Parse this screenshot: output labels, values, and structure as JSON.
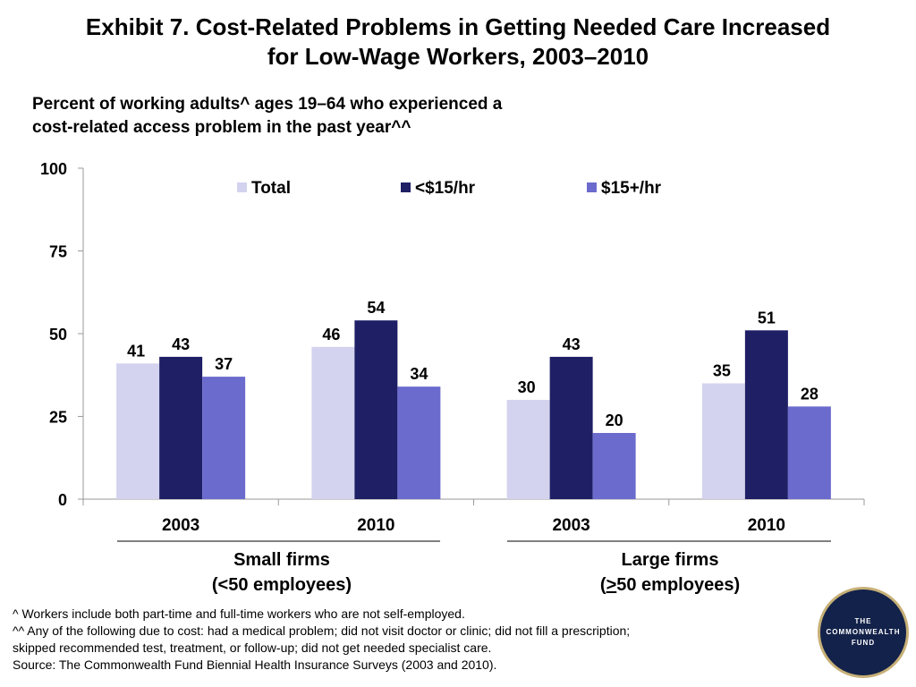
{
  "title_line1": "Exhibit 7. Cost-Related Problems in Getting Needed Care Increased",
  "title_line2": "for Low-Wage Workers, 2003–2010",
  "subtitle_line1": "Percent of working adults^ ages 19–64 who experienced a",
  "subtitle_line2": "cost-related access problem in the past year^^",
  "groups": [
    {
      "line1": "Small firms",
      "line2": "(<50 employees)"
    },
    {
      "line1": "Large firms",
      "line2_prefix": "(",
      "line2_symbol": ">",
      "line2_suffix": "50 employees)"
    }
  ],
  "footnotes": [
    "^ Workers include both part-time and full-time workers who are not self-employed.",
    "^^ Any of the following due to cost: had a medical problem; did not visit doctor or clinic; did not fill a prescription;",
    "skipped recommended test, treatment, or follow-up; did not get needed specialist care.",
    "Source: The Commonwealth Fund Biennial Health Insurance Surveys (2003 and 2010)."
  ],
  "logo": {
    "line1": "THE",
    "line2": "COMMONWEALTH",
    "line3": "FUND"
  },
  "colors": {
    "total": "#d3d3ef",
    "low_wage": "#1f1f66",
    "high_wage": "#6b6bce",
    "axis": "#9a9a9a",
    "group_rule": "#000000"
  },
  "chart_data": {
    "type": "bar",
    "categories": [
      "2003",
      "2010",
      "2003",
      "2010"
    ],
    "series": [
      {
        "name": "Total",
        "values": [
          41,
          46,
          30,
          35
        ]
      },
      {
        "name": "<$15/hr",
        "values": [
          43,
          54,
          43,
          51
        ]
      },
      {
        "name": "$15+/hr",
        "values": [
          37,
          34,
          20,
          28
        ]
      }
    ],
    "ylim": [
      0,
      100
    ],
    "yticks": [
      0,
      25,
      50,
      75,
      100
    ],
    "legend": "top",
    "grid": false
  }
}
